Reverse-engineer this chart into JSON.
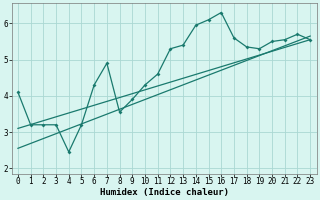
{
  "x": [
    0,
    1,
    2,
    3,
    4,
    5,
    6,
    7,
    8,
    9,
    10,
    11,
    12,
    13,
    14,
    15,
    16,
    17,
    18,
    19,
    20,
    21,
    22,
    23
  ],
  "y_main": [
    4.1,
    3.2,
    3.2,
    3.2,
    2.45,
    3.2,
    4.3,
    4.9,
    3.55,
    3.9,
    4.3,
    4.6,
    5.3,
    5.4,
    5.95,
    6.1,
    6.3,
    5.6,
    5.35,
    5.3,
    5.5,
    5.55,
    5.7,
    5.55
  ],
  "trend1_x": [
    0,
    23
  ],
  "trend1_y": [
    3.1,
    5.55
  ],
  "trend2_x": [
    0,
    23
  ],
  "trend2_y": [
    2.55,
    5.65
  ],
  "line_color": "#1a7a6e",
  "bg_color": "#d8f5f0",
  "grid_color": "#aad8d3",
  "xlabel": "Humidex (Indice chaleur)",
  "xlim": [
    -0.5,
    23.5
  ],
  "ylim": [
    1.85,
    6.55
  ],
  "yticks": [
    2,
    3,
    4,
    5,
    6
  ],
  "xticks": [
    0,
    1,
    2,
    3,
    4,
    5,
    6,
    7,
    8,
    9,
    10,
    11,
    12,
    13,
    14,
    15,
    16,
    17,
    18,
    19,
    20,
    21,
    22,
    23
  ],
  "tick_fontsize": 5.5,
  "label_fontsize": 6.5
}
